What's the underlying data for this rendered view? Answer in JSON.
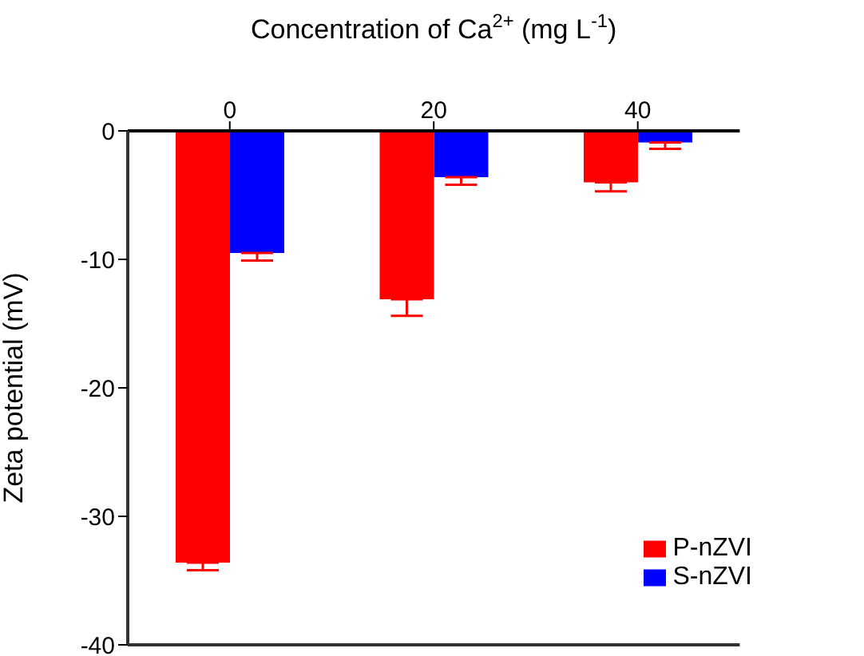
{
  "chart_data": {
    "type": "bar",
    "xlabel": "Concentration of Ca$^{2+}$ (mg L$^{-1}$)",
    "ylabel": "Zeta potential (mV)",
    "categories": [
      "0",
      "20",
      "40"
    ],
    "series": [
      {
        "name": "P-nZVI",
        "color": "#ff0000",
        "values": [
          -33.6,
          -13.1,
          -4.0
        ],
        "errors": [
          [
            -34.2,
            -33.6
          ],
          [
            -14.4,
            -13.1
          ],
          [
            -4.7,
            -4.0
          ]
        ]
      },
      {
        "name": "S-nZVI",
        "color": "#0000ff",
        "values": [
          -9.5,
          -3.6,
          -0.9
        ],
        "errors": [
          [
            -10.1,
            -9.5
          ],
          [
            -4.2,
            -3.6
          ],
          [
            -1.4,
            -0.9
          ]
        ]
      }
    ],
    "ylim": [
      -40,
      0
    ],
    "yticks": [
      -40,
      -30,
      -20,
      -10,
      0
    ],
    "grid": false,
    "legend": "bottom right"
  }
}
